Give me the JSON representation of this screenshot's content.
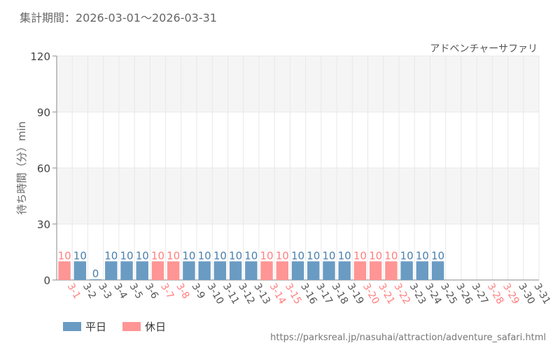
{
  "period_label": "集計期間：2026-03-01～2026-03-31",
  "source_url": "https://parksreal.jp/nasuhai/attraction/adventure_safari.html",
  "colors": {
    "weekday": "#6a9bc3",
    "holiday": "#ff9595",
    "weekday_text": "#4a7fae",
    "holiday_text": "#ff7f7f",
    "tick_text_weekday": "#555555",
    "tick_text_holiday": "#ff7f7f",
    "grid": "#e8e8e8",
    "band": "#f5f5f5"
  },
  "chart_data": {
    "type": "bar",
    "title": "アドベンチャーサファリ",
    "ylabel": "待ち時間（分）min",
    "xlabel": "",
    "ylim": [
      0,
      120
    ],
    "yticks": [
      0,
      30,
      60,
      90,
      120
    ],
    "grid": true,
    "legend_position": "bottom-left",
    "categories": [
      "3-1",
      "3-2",
      "3-3",
      "3-4",
      "3-5",
      "3-6",
      "3-7",
      "3-8",
      "3-9",
      "3-10",
      "3-11",
      "3-12",
      "3-13",
      "3-14",
      "3-15",
      "3-16",
      "3-17",
      "3-18",
      "3-19",
      "3-20",
      "3-21",
      "3-22",
      "3-23",
      "3-24",
      "3-25",
      "3-26",
      "3-27",
      "3-28",
      "3-29",
      "3-30",
      "3-31"
    ],
    "values": [
      10,
      10,
      0,
      10,
      10,
      10,
      10,
      10,
      10,
      10,
      10,
      10,
      10,
      10,
      10,
      10,
      10,
      10,
      10,
      10,
      10,
      10,
      10,
      10,
      10,
      null,
      null,
      null,
      null,
      null,
      null
    ],
    "day_type": [
      "holiday",
      "weekday",
      "weekday",
      "weekday",
      "weekday",
      "weekday",
      "holiday",
      "holiday",
      "weekday",
      "weekday",
      "weekday",
      "weekday",
      "weekday",
      "holiday",
      "holiday",
      "weekday",
      "weekday",
      "weekday",
      "weekday",
      "holiday",
      "holiday",
      "holiday",
      "weekday",
      "weekday",
      "weekday",
      "weekday",
      "weekday",
      "holiday",
      "holiday",
      "weekday",
      "weekday"
    ],
    "legend": [
      {
        "key": "weekday",
        "label": "平日"
      },
      {
        "key": "holiday",
        "label": "休日"
      }
    ]
  }
}
